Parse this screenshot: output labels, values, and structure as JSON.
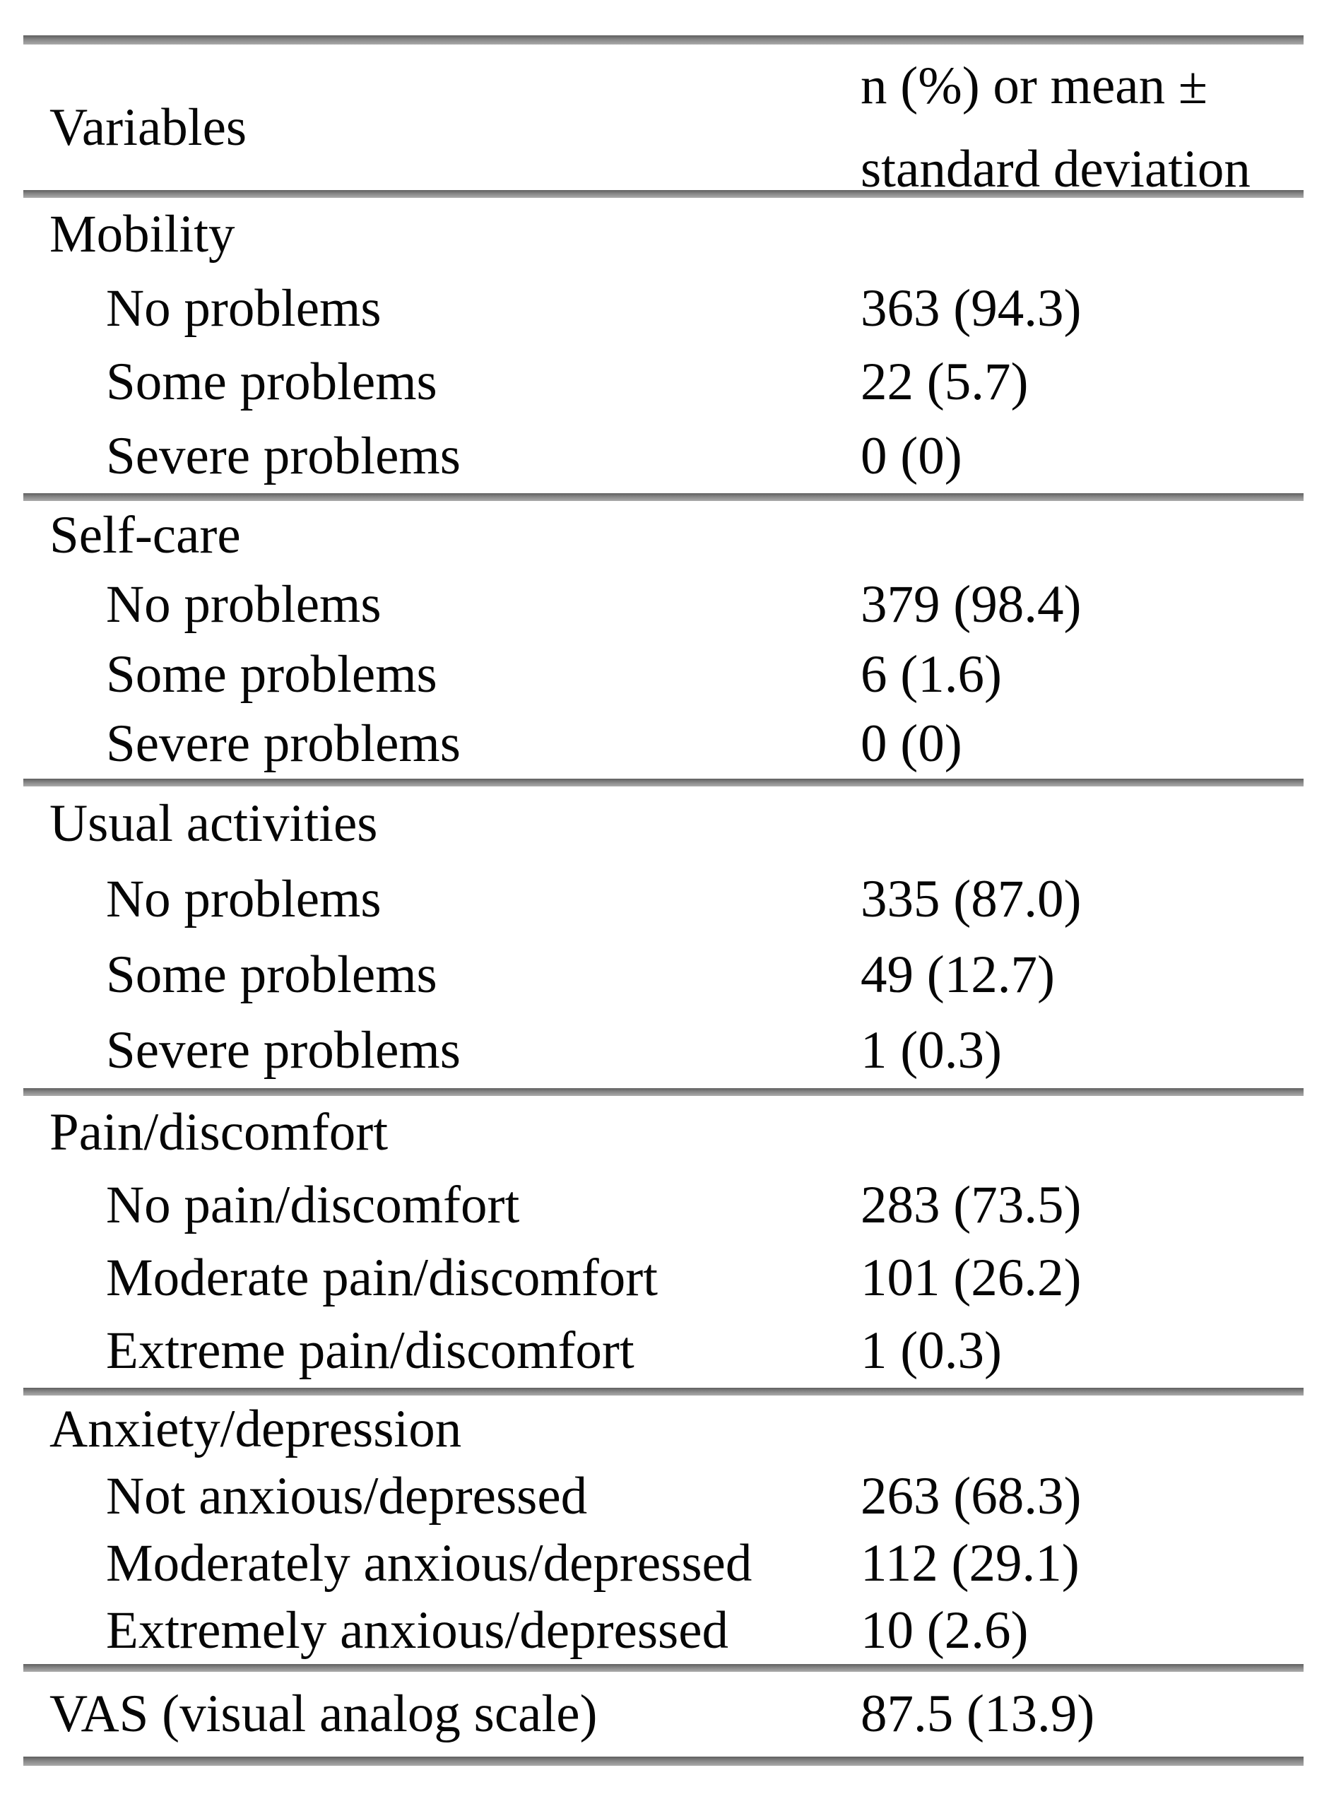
{
  "table": {
    "header": {
      "variables_label": "Variables",
      "value_label_line1": "n (%) or mean ±",
      "value_label_line2": "standard deviation"
    },
    "sections": [
      {
        "title": "Mobility",
        "rows": [
          {
            "label": "No problems",
            "value": "363 (94.3)"
          },
          {
            "label": "Some problems",
            "value": "22 (5.7)"
          },
          {
            "label": "Severe problems",
            "value": "0 (0)"
          }
        ]
      },
      {
        "title": "Self-care",
        "rows": [
          {
            "label": "No problems",
            "value": "379 (98.4)"
          },
          {
            "label": "Some problems",
            "value": "6 (1.6)"
          },
          {
            "label": "Severe problems",
            "value": "0 (0)"
          }
        ]
      },
      {
        "title": "Usual activities",
        "rows": [
          {
            "label": "No problems",
            "value": "335 (87.0)"
          },
          {
            "label": "Some problems",
            "value": "49 (12.7)"
          },
          {
            "label": "Severe problems",
            "value": "1 (0.3)"
          }
        ]
      },
      {
        "title": "Pain/discomfort",
        "rows": [
          {
            "label": "No pain/discomfort",
            "value": "283 (73.5)"
          },
          {
            "label": "Moderate pain/discomfort",
            "value": "101 (26.2)"
          },
          {
            "label": "Extreme pain/discomfort",
            "value": "1 (0.3)"
          }
        ]
      },
      {
        "title": "Anxiety/depression",
        "rows": [
          {
            "label": "Not anxious/depressed",
            "value": "263 (68.3)"
          },
          {
            "label": "Moderately anxious/depressed",
            "value": "112 (29.1)"
          },
          {
            "label": "Extremely anxious/depressed",
            "value": "10 (2.6)"
          }
        ]
      }
    ],
    "footer_row": {
      "label": "VAS (visual analog scale)",
      "value": "87.5 (13.9)"
    },
    "style": {
      "rule_color": "#868686",
      "text_color": "#060606",
      "background": "#ffffff"
    }
  }
}
